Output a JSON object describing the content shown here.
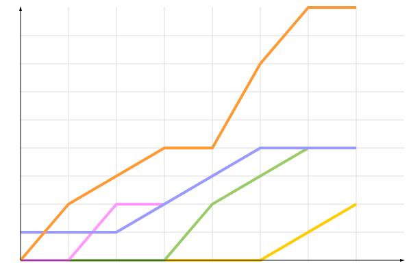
{
  "chart_data": {
    "type": "line",
    "title": "",
    "xlabel": "",
    "ylabel": "",
    "x": [
      0,
      1,
      2,
      3,
      4,
      5,
      6,
      7
    ],
    "xlim": [
      0,
      8
    ],
    "ylim": [
      0,
      9
    ],
    "grid": true,
    "series": [
      {
        "color": "#ffcc00",
        "values": [
          0,
          0,
          0,
          0,
          0,
          0,
          1,
          2
        ]
      },
      {
        "color": "#99cc66",
        "values": [
          0,
          0,
          0,
          0,
          2,
          3,
          4,
          4
        ]
      },
      {
        "color": "#ff99ff",
        "values": [
          0,
          0,
          2,
          2,
          null,
          null,
          null,
          null
        ]
      },
      {
        "color": "#9999ff",
        "values": [
          1,
          1,
          1,
          2,
          3,
          4,
          4,
          4
        ]
      },
      {
        "color": "#ff9933",
        "values": [
          0,
          2,
          3,
          4,
          4,
          7,
          9,
          9
        ]
      }
    ]
  }
}
